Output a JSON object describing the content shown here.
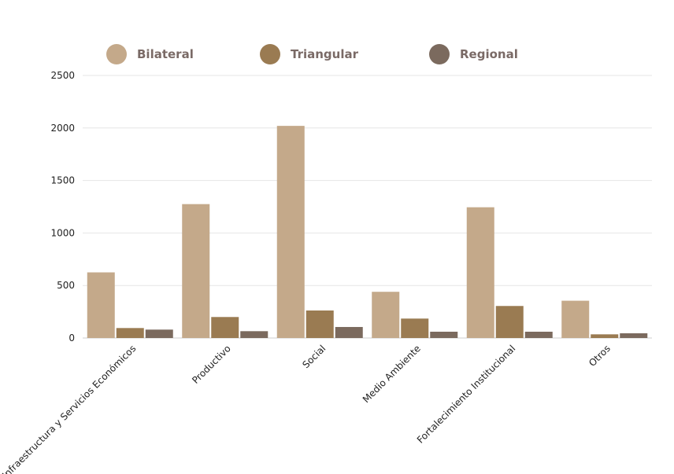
{
  "chart_data": {
    "type": "bar",
    "categories": [
      "Infraestructura y Servicios Económicos",
      "Productivo",
      "Social",
      "Medio Ambiente",
      "Fortalecimiento Institucional",
      "Otros"
    ],
    "series": [
      {
        "name": "Bilateral",
        "color": "#c4a98a",
        "values": [
          625,
          1275,
          2020,
          440,
          1245,
          355
        ]
      },
      {
        "name": "Triangular",
        "color": "#9a7b52",
        "values": [
          95,
          200,
          262,
          185,
          305,
          35
        ]
      },
      {
        "name": "Regional",
        "color": "#7b6a5e",
        "values": [
          80,
          65,
          105,
          60,
          60,
          45
        ]
      }
    ],
    "legend_colors": [
      "#c4a98a",
      "#9a7b52",
      "#7b6a5e"
    ],
    "yticks": [
      0,
      500,
      1000,
      1500,
      2000,
      2500
    ],
    "ylim": [
      0,
      2500
    ],
    "grid": true,
    "legend_position": "top"
  }
}
